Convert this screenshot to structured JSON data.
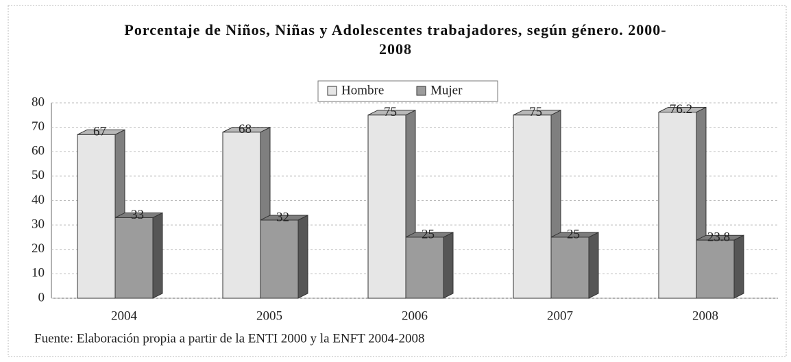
{
  "chart_data": {
    "type": "bar",
    "title": "Porcentaje de Niños, Niñas y Adolescentes trabajadores, según género. 2000-2008",
    "categories": [
      "2004",
      "2005",
      "2006",
      "2007",
      "2008"
    ],
    "series": [
      {
        "name": "Hombre",
        "color": "#e6e6e6",
        "values": [
          67,
          68,
          75,
          75,
          76.2
        ]
      },
      {
        "name": "Mujer",
        "color": "#9c9c9c",
        "values": [
          33,
          32,
          25,
          25,
          23.8
        ]
      }
    ],
    "ylim": [
      0,
      80
    ],
    "yticks": [
      0,
      10,
      20,
      30,
      40,
      50,
      60,
      70,
      80
    ],
    "grid": true,
    "source": "Fuente: Elaboración propia a partir de la ENTI 2000 y la ENFT 2004-2008"
  }
}
